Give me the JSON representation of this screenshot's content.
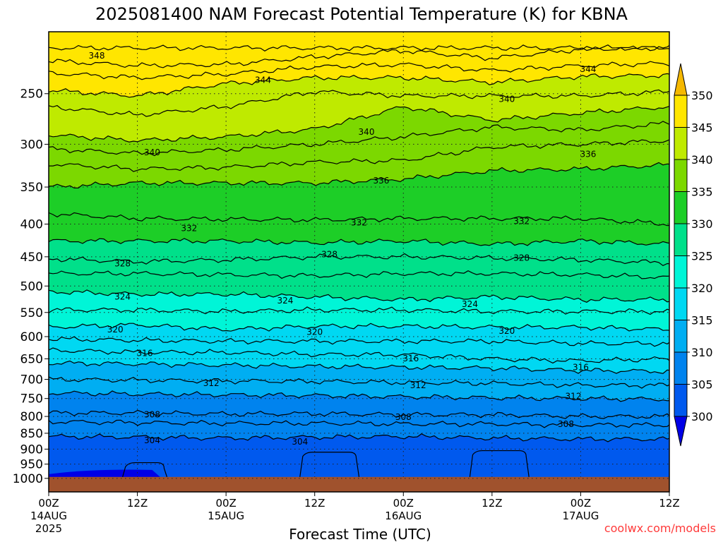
{
  "chart_data": {
    "type": "heatmap",
    "title": "2025081400 NAM Forecast Potential Temperature (K) for KBNA",
    "xlabel": "Forecast Time (UTC)",
    "ylabel": "",
    "credit": "coolwx.com/models",
    "x_range_hours": [
      0,
      84
    ],
    "y_range_hpa": [
      200,
      1050
    ],
    "x_ticks": [
      {
        "hour": 0,
        "line1": "00Z",
        "line2": "14AUG",
        "line3": "2025"
      },
      {
        "hour": 12,
        "line1": "12Z",
        "line2": "",
        "line3": ""
      },
      {
        "hour": 24,
        "line1": "00Z",
        "line2": "15AUG",
        "line3": ""
      },
      {
        "hour": 36,
        "line1": "12Z",
        "line2": "",
        "line3": ""
      },
      {
        "hour": 48,
        "line1": "00Z",
        "line2": "16AUG",
        "line3": ""
      },
      {
        "hour": 60,
        "line1": "12Z",
        "line2": "",
        "line3": ""
      },
      {
        "hour": 72,
        "line1": "00Z",
        "line2": "17AUG",
        "line3": ""
      },
      {
        "hour": 84,
        "line1": "12Z",
        "line2": "",
        "line3": ""
      }
    ],
    "y_ticks": [
      250,
      300,
      350,
      400,
      450,
      500,
      550,
      600,
      650,
      700,
      750,
      800,
      850,
      900,
      950,
      1000
    ],
    "colorbar": {
      "labels": [
        350,
        345,
        340,
        335,
        330,
        325,
        320,
        315,
        310,
        305,
        300
      ],
      "bands": [
        {
          "lo": 345,
          "hi": 350,
          "color": "#FFE600"
        },
        {
          "lo": 340,
          "hi": 345,
          "color": "#BFEA00"
        },
        {
          "lo": 335,
          "hi": 340,
          "color": "#7CD800"
        },
        {
          "lo": 330,
          "hi": 335,
          "color": "#1DCE27"
        },
        {
          "lo": 325,
          "hi": 330,
          "color": "#00E08A"
        },
        {
          "lo": 320,
          "hi": 325,
          "color": "#00F5D7"
        },
        {
          "lo": 315,
          "hi": 320,
          "color": "#00D8F2"
        },
        {
          "lo": 310,
          "hi": 315,
          "color": "#00AEF2"
        },
        {
          "lo": 305,
          "hi": 310,
          "color": "#0083EE"
        },
        {
          "lo": 300,
          "hi": 305,
          "color": "#0059EE"
        }
      ],
      "above_color": "#F5B800",
      "below_color": "#0000E6"
    },
    "ground_color": "#A0522D",
    "contour_interval_K": 2,
    "isentropes": [
      {
        "theta": 350,
        "p": [
          212,
          212,
          212,
          212,
          212,
          212,
          212,
          212
        ]
      },
      {
        "theta": 348,
        "p": [
          222,
          226,
          225,
          219,
          214,
          220,
          213,
          212
        ]
      },
      {
        "theta": 346,
        "p": [
          232,
          236,
          233,
          227,
          225,
          230,
          226,
          224
        ]
      },
      {
        "theta": 344,
        "p": [
          247,
          252,
          241,
          236,
          236,
          240,
          235,
          234
        ]
      },
      {
        "theta": 342,
        "p": [
          262,
          270,
          262,
          248,
          252,
          252,
          252,
          248
        ]
      },
      {
        "theta": 340,
        "p": [
          290,
          296,
          292,
          284,
          262,
          275,
          268,
          262
        ]
      },
      {
        "theta": 338,
        "p": [
          305,
          310,
          306,
          300,
          292,
          282,
          285,
          278
        ]
      },
      {
        "theta": 336,
        "p": [
          322,
          328,
          326,
          320,
          318,
          303,
          300,
          296
        ]
      },
      {
        "theta": 334,
        "p": [
          350,
          345,
          345,
          345,
          340,
          330,
          328,
          323
        ]
      },
      {
        "theta": 332,
        "p": [
          385,
          392,
          393,
          394,
          392,
          392,
          392,
          400
        ]
      },
      {
        "theta": 330,
        "p": [
          425,
          425,
          425,
          428,
          425,
          430,
          425,
          430
        ]
      },
      {
        "theta": 328,
        "p": [
          453,
          458,
          455,
          450,
          450,
          452,
          455,
          460
        ]
      },
      {
        "theta": 326,
        "p": [
          478,
          478,
          480,
          482,
          478,
          478,
          480,
          485
        ]
      },
      {
        "theta": 324,
        "p": [
          510,
          515,
          515,
          520,
          525,
          520,
          525,
          525
        ]
      },
      {
        "theta": 322,
        "p": [
          545,
          545,
          548,
          545,
          545,
          548,
          548,
          548
        ]
      },
      {
        "theta": 320,
        "p": [
          580,
          575,
          585,
          578,
          578,
          580,
          580,
          585
        ]
      },
      {
        "theta": 318,
        "p": [
          605,
          608,
          610,
          610,
          610,
          610,
          615,
          615
        ]
      },
      {
        "theta": 316,
        "p": [
          630,
          635,
          635,
          640,
          640,
          650,
          655,
          650
        ]
      },
      {
        "theta": 314,
        "p": [
          660,
          662,
          665,
          668,
          670,
          672,
          678,
          680
        ]
      },
      {
        "theta": 312,
        "p": [
          700,
          702,
          704,
          705,
          708,
          710,
          715,
          715
        ]
      },
      {
        "theta": 310,
        "p": [
          735,
          738,
          740,
          742,
          745,
          748,
          750,
          752
        ]
      },
      {
        "theta": 308,
        "p": [
          790,
          790,
          793,
          792,
          795,
          795,
          800,
          800
        ]
      },
      {
        "theta": 306,
        "p": [
          815,
          818,
          820,
          820,
          822,
          822,
          825,
          825
        ]
      },
      {
        "theta": 304,
        "p": [
          860,
          862,
          865,
          862,
          860,
          865,
          868,
          868
        ]
      }
    ],
    "contour_labels": [
      {
        "text": "348",
        "hour": 6.5,
        "p": 218
      },
      {
        "text": "344",
        "hour": 29,
        "p": 238
      },
      {
        "text": "344",
        "hour": 73,
        "p": 229
      },
      {
        "text": "340",
        "hour": 62,
        "p": 255
      },
      {
        "text": "340",
        "hour": 43,
        "p": 287
      },
      {
        "text": "340",
        "hour": 14,
        "p": 309
      },
      {
        "text": "336",
        "hour": 73,
        "p": 311
      },
      {
        "text": "336",
        "hour": 45,
        "p": 342
      },
      {
        "text": "332",
        "hour": 19,
        "p": 406
      },
      {
        "text": "332",
        "hour": 42,
        "p": 398
      },
      {
        "text": "332",
        "hour": 64,
        "p": 396
      },
      {
        "text": "328",
        "hour": 10,
        "p": 461
      },
      {
        "text": "328",
        "hour": 38,
        "p": 446
      },
      {
        "text": "328",
        "hour": 64,
        "p": 452
      },
      {
        "text": "324",
        "hour": 10,
        "p": 520
      },
      {
        "text": "324",
        "hour": 32,
        "p": 527
      },
      {
        "text": "324",
        "hour": 57,
        "p": 534
      },
      {
        "text": "320",
        "hour": 9,
        "p": 585
      },
      {
        "text": "320",
        "hour": 36,
        "p": 590
      },
      {
        "text": "320",
        "hour": 62,
        "p": 588
      },
      {
        "text": "316",
        "hour": 13,
        "p": 637
      },
      {
        "text": "316",
        "hour": 49,
        "p": 649
      },
      {
        "text": "316",
        "hour": 72,
        "p": 670
      },
      {
        "text": "312",
        "hour": 22,
        "p": 710
      },
      {
        "text": "312",
        "hour": 50,
        "p": 715
      },
      {
        "text": "312",
        "hour": 71,
        "p": 744
      },
      {
        "text": "308",
        "hour": 14,
        "p": 795
      },
      {
        "text": "308",
        "hour": 48,
        "p": 802
      },
      {
        "text": "308",
        "hour": 70,
        "p": 823
      },
      {
        "text": "304",
        "hour": 14,
        "p": 872
      },
      {
        "text": "304",
        "hour": 34,
        "p": 877
      }
    ],
    "surface_features": [
      {
        "theta": 302,
        "hours": [
          10,
          16
        ],
        "top_p": 945,
        "note": "closed low-level loop"
      },
      {
        "theta": 302,
        "hours": [
          34,
          42
        ],
        "top_p": 910
      },
      {
        "theta": 302,
        "hours": [
          57,
          65
        ],
        "top_p": 905
      }
    ]
  }
}
